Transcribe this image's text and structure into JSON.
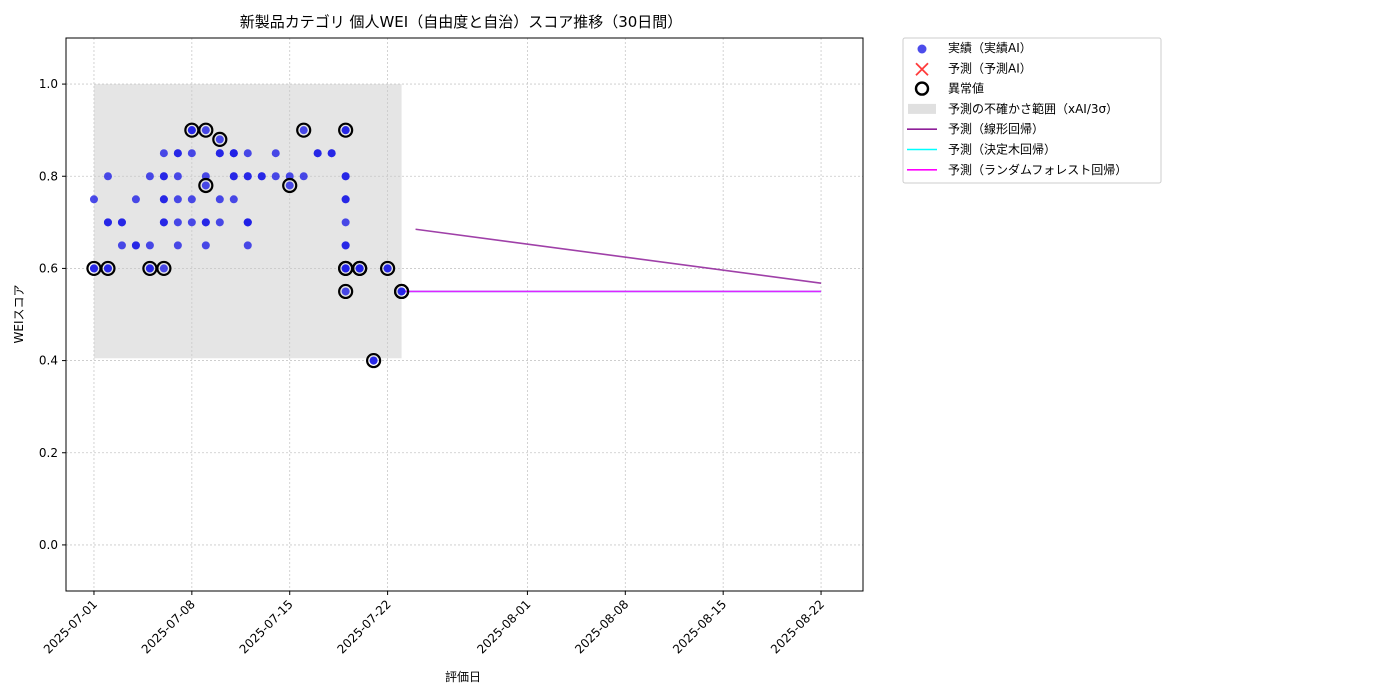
{
  "chart_data": {
    "type": "scatter",
    "title": "新製品カテゴリ 個人WEI（自由度と自治）スコア推移（30日間）",
    "xlabel": "評価日",
    "ylabel": "WEIスコア",
    "xlim": [
      "2025-06-29",
      "2025-08-25"
    ],
    "ylim": [
      -0.1,
      1.1
    ],
    "grid": true,
    "x_ticks": [
      "2025-07-01",
      "2025-07-08",
      "2025-07-15",
      "2025-07-22",
      "2025-08-01",
      "2025-08-08",
      "2025-08-15",
      "2025-08-22"
    ],
    "y_ticks": [
      "0.0",
      "0.2",
      "0.4",
      "0.6",
      "0.8",
      "1.0"
    ],
    "legend_position": "outside-right-top",
    "legend": [
      {
        "label": "実績（実績AI）",
        "marker": "dot",
        "color": "#1f1fe6"
      },
      {
        "label": "予測（予測AI）",
        "marker": "x",
        "color": "#ff3b3b"
      },
      {
        "label": "異常値",
        "marker": "ring",
        "color": "#000000"
      },
      {
        "label": "予測の不確かさ範囲（xAI/3σ）",
        "marker": "patch",
        "color": "#d3d3d3"
      },
      {
        "label": "予測（線形回帰）",
        "marker": "line",
        "color": "#8e1f99"
      },
      {
        "label": "予測（決定木回帰）",
        "marker": "line",
        "color": "#00ffff"
      },
      {
        "label": "予測（ランダムフォレスト回帰）",
        "marker": "line",
        "color": "#ff00ff"
      }
    ],
    "uncertainty_band": {
      "x": [
        "2025-07-01",
        "2025-07-23"
      ],
      "y": [
        0.405,
        1.0
      ],
      "color": "#d3d3d3"
    },
    "series": [
      {
        "name": "実績（実績AI）",
        "color": "#1f1fe6",
        "points": [
          [
            "2025-07-01",
            0.75
          ],
          [
            "2025-07-01",
            0.6
          ],
          [
            "2025-07-01",
            0.6
          ],
          [
            "2025-07-02",
            0.7
          ],
          [
            "2025-07-02",
            0.7
          ],
          [
            "2025-07-02",
            0.6
          ],
          [
            "2025-07-02",
            0.6
          ],
          [
            "2025-07-02",
            0.8
          ],
          [
            "2025-07-03",
            0.7
          ],
          [
            "2025-07-03",
            0.65
          ],
          [
            "2025-07-03",
            0.7
          ],
          [
            "2025-07-04",
            0.75
          ],
          [
            "2025-07-04",
            0.65
          ],
          [
            "2025-07-04",
            0.65
          ],
          [
            "2025-07-05",
            0.8
          ],
          [
            "2025-07-05",
            0.6
          ],
          [
            "2025-07-05",
            0.6
          ],
          [
            "2025-07-05",
            0.65
          ],
          [
            "2025-07-06",
            0.6
          ],
          [
            "2025-07-06",
            0.75
          ],
          [
            "2025-07-06",
            0.75
          ],
          [
            "2025-07-06",
            0.8
          ],
          [
            "2025-07-06",
            0.8
          ],
          [
            "2025-07-06",
            0.85
          ],
          [
            "2025-07-06",
            0.7
          ],
          [
            "2025-07-06",
            0.7
          ],
          [
            "2025-07-07",
            0.7
          ],
          [
            "2025-07-07",
            0.75
          ],
          [
            "2025-07-07",
            0.85
          ],
          [
            "2025-07-07",
            0.85
          ],
          [
            "2025-07-07",
            0.65
          ],
          [
            "2025-07-07",
            0.8
          ],
          [
            "2025-07-08",
            0.85
          ],
          [
            "2025-07-08",
            0.7
          ],
          [
            "2025-07-08",
            0.9
          ],
          [
            "2025-07-08",
            0.75
          ],
          [
            "2025-07-08",
            0.9
          ],
          [
            "2025-07-09",
            0.9
          ],
          [
            "2025-07-09",
            0.78
          ],
          [
            "2025-07-09",
            0.8
          ],
          [
            "2025-07-09",
            0.65
          ],
          [
            "2025-07-09",
            0.7
          ],
          [
            "2025-07-09",
            0.7
          ],
          [
            "2025-07-10",
            0.7
          ],
          [
            "2025-07-10",
            0.85
          ],
          [
            "2025-07-10",
            0.88
          ],
          [
            "2025-07-10",
            0.85
          ],
          [
            "2025-07-10",
            0.75
          ],
          [
            "2025-07-11",
            0.75
          ],
          [
            "2025-07-11",
            0.85
          ],
          [
            "2025-07-11",
            0.85
          ],
          [
            "2025-07-11",
            0.8
          ],
          [
            "2025-07-11",
            0.85
          ],
          [
            "2025-07-11",
            0.8
          ],
          [
            "2025-07-12",
            0.7
          ],
          [
            "2025-07-12",
            0.65
          ],
          [
            "2025-07-12",
            0.85
          ],
          [
            "2025-07-12",
            0.7
          ],
          [
            "2025-07-12",
            0.7
          ],
          [
            "2025-07-12",
            0.8
          ],
          [
            "2025-07-12",
            0.8
          ],
          [
            "2025-07-13",
            0.8
          ],
          [
            "2025-07-13",
            0.8
          ],
          [
            "2025-07-14",
            0.85
          ],
          [
            "2025-07-14",
            0.8
          ],
          [
            "2025-07-15",
            0.78
          ],
          [
            "2025-07-15",
            0.8
          ],
          [
            "2025-07-16",
            0.9
          ],
          [
            "2025-07-16",
            0.8
          ],
          [
            "2025-07-17",
            0.85
          ],
          [
            "2025-07-17",
            0.85
          ],
          [
            "2025-07-18",
            0.85
          ],
          [
            "2025-07-18",
            0.85
          ],
          [
            "2025-07-19",
            0.9
          ],
          [
            "2025-07-19",
            0.9
          ],
          [
            "2025-07-19",
            0.8
          ],
          [
            "2025-07-19",
            0.8
          ],
          [
            "2025-07-19",
            0.75
          ],
          [
            "2025-07-19",
            0.75
          ],
          [
            "2025-07-19",
            0.7
          ],
          [
            "2025-07-19",
            0.65
          ],
          [
            "2025-07-19",
            0.65
          ],
          [
            "2025-07-19",
            0.6
          ],
          [
            "2025-07-19",
            0.6
          ],
          [
            "2025-07-19",
            0.55
          ],
          [
            "2025-07-19",
            0.6
          ],
          [
            "2025-07-20",
            0.6
          ],
          [
            "2025-07-20",
            0.6
          ],
          [
            "2025-07-20",
            0.6
          ],
          [
            "2025-07-21",
            0.4
          ],
          [
            "2025-07-21",
            0.4
          ],
          [
            "2025-07-22",
            0.6
          ],
          [
            "2025-07-22",
            0.6
          ],
          [
            "2025-07-23",
            0.55
          ],
          [
            "2025-07-23",
            0.55
          ]
        ]
      },
      {
        "name": "異常値",
        "color": "#000000",
        "points": [
          [
            "2025-07-01",
            0.6
          ],
          [
            "2025-07-02",
            0.6
          ],
          [
            "2025-07-05",
            0.6
          ],
          [
            "2025-07-06",
            0.6
          ],
          [
            "2025-07-08",
            0.9
          ],
          [
            "2025-07-09",
            0.9
          ],
          [
            "2025-07-09",
            0.78
          ],
          [
            "2025-07-10",
            0.88
          ],
          [
            "2025-07-15",
            0.78
          ],
          [
            "2025-07-16",
            0.9
          ],
          [
            "2025-07-19",
            0.9
          ],
          [
            "2025-07-19",
            0.6
          ],
          [
            "2025-07-19",
            0.55
          ],
          [
            "2025-07-19",
            0.6
          ],
          [
            "2025-07-20",
            0.6
          ],
          [
            "2025-07-20",
            0.6
          ],
          [
            "2025-07-21",
            0.4
          ],
          [
            "2025-07-22",
            0.6
          ],
          [
            "2025-07-23",
            0.55
          ],
          [
            "2025-07-23",
            0.55
          ]
        ]
      },
      {
        "name": "予測（線形回帰）",
        "color": "#8e1f99",
        "points": [
          [
            "2025-07-24",
            0.685
          ],
          [
            "2025-08-22",
            0.568
          ]
        ]
      },
      {
        "name": "予測（決定木回帰）",
        "color": "#00ffff",
        "points": [
          [
            "2025-07-23",
            0.55
          ],
          [
            "2025-08-22",
            0.55
          ]
        ]
      },
      {
        "name": "予測（ランダムフォレスト回帰）",
        "color": "#ff00ff",
        "points": [
          [
            "2025-07-23",
            0.55
          ],
          [
            "2025-08-22",
            0.55
          ]
        ]
      }
    ]
  }
}
